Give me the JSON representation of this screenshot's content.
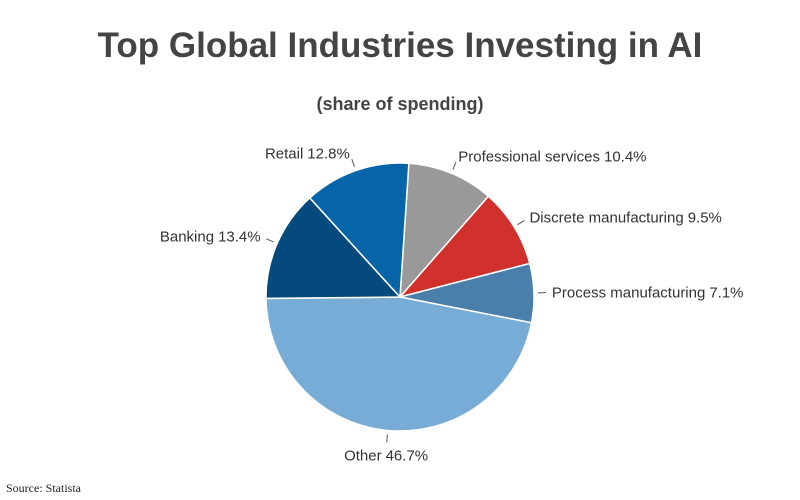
{
  "chart_data": {
    "type": "pie",
    "title": "Top Global Industries Investing in AI",
    "subtitle": "(share of spending)",
    "categories": [
      "Professional services",
      "Discrete manufacturing",
      "Process manufacturing",
      "Other",
      "Banking",
      "Retail"
    ],
    "values": [
      10.4,
      9.5,
      7.1,
      46.7,
      13.4,
      12.8
    ],
    "value_labels": [
      "10.4%",
      "9.5%",
      "7.1%",
      "46.7%",
      "13.4%",
      "12.8%"
    ],
    "colors": [
      "#999999",
      "#d0312d",
      "#4a7fab",
      "#77acd6",
      "#054a7c",
      "#0565a8"
    ],
    "source": "Source: Statista"
  }
}
